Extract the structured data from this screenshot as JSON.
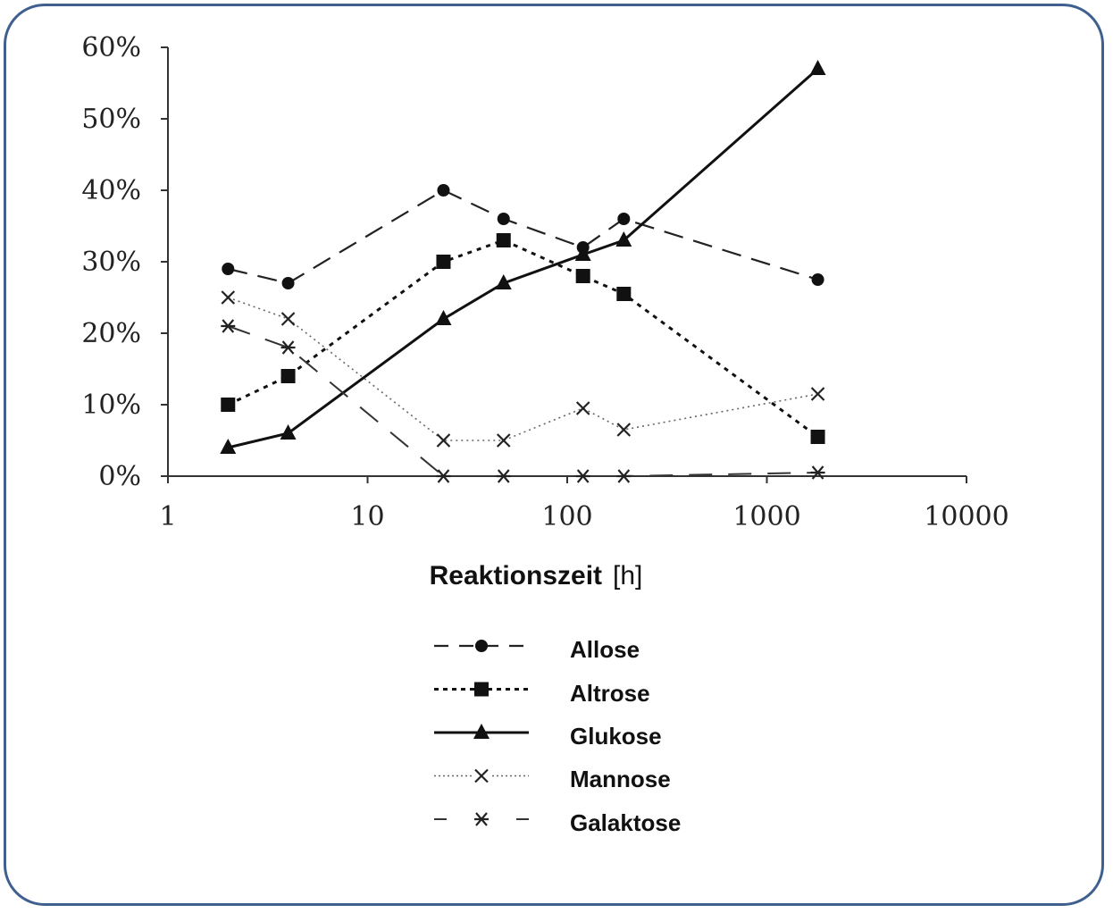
{
  "chart_data": {
    "type": "line",
    "x_scale": "log",
    "xlabel": "Reaktionszeit",
    "xunit": "[h]",
    "ylabel": "",
    "xlim": [
      1,
      10000
    ],
    "ylim": [
      0,
      60
    ],
    "x_ticks": [
      "1",
      "10",
      "100",
      "1000",
      "10000"
    ],
    "y_ticks": [
      "0%",
      "10%",
      "20%",
      "30%",
      "40%",
      "50%",
      "60%"
    ],
    "grid": false,
    "legend_position": "bottom",
    "series": [
      {
        "name": "Allose",
        "marker": "circle",
        "line": "dashed",
        "x": [
          2,
          4,
          24,
          48,
          120,
          192,
          1800
        ],
        "y": [
          29,
          27,
          40,
          36,
          32,
          36,
          27.5
        ]
      },
      {
        "name": "Altrose",
        "marker": "square",
        "line": "dotted",
        "x": [
          2,
          4,
          24,
          48,
          120,
          192,
          1800
        ],
        "y": [
          10,
          14,
          30,
          33,
          28,
          25.5,
          5.5
        ]
      },
      {
        "name": "Glukose",
        "marker": "triangle",
        "line": "solid",
        "x": [
          2,
          4,
          24,
          48,
          120,
          192,
          1800
        ],
        "y": [
          4,
          6,
          22,
          27,
          31,
          33,
          57
        ]
      },
      {
        "name": "Mannose",
        "marker": "x",
        "line": "fine-dotted",
        "x": [
          2,
          4,
          24,
          48,
          120,
          192,
          1800
        ],
        "y": [
          25,
          22,
          5,
          5,
          9.5,
          6.5,
          11.5
        ]
      },
      {
        "name": "Galaktose",
        "marker": "asterisk",
        "line": "dash-gap",
        "x": [
          2,
          4,
          24,
          48,
          120,
          192,
          1800
        ],
        "y": [
          21,
          18,
          0,
          0,
          0,
          0,
          0.5
        ]
      }
    ]
  },
  "legend": {
    "items": [
      "Allose",
      "Altrose",
      "Glukose",
      "Mannose",
      "Galaktose"
    ]
  },
  "colors": {
    "frame_border": "#3f5f8f",
    "ink": "#111111"
  }
}
